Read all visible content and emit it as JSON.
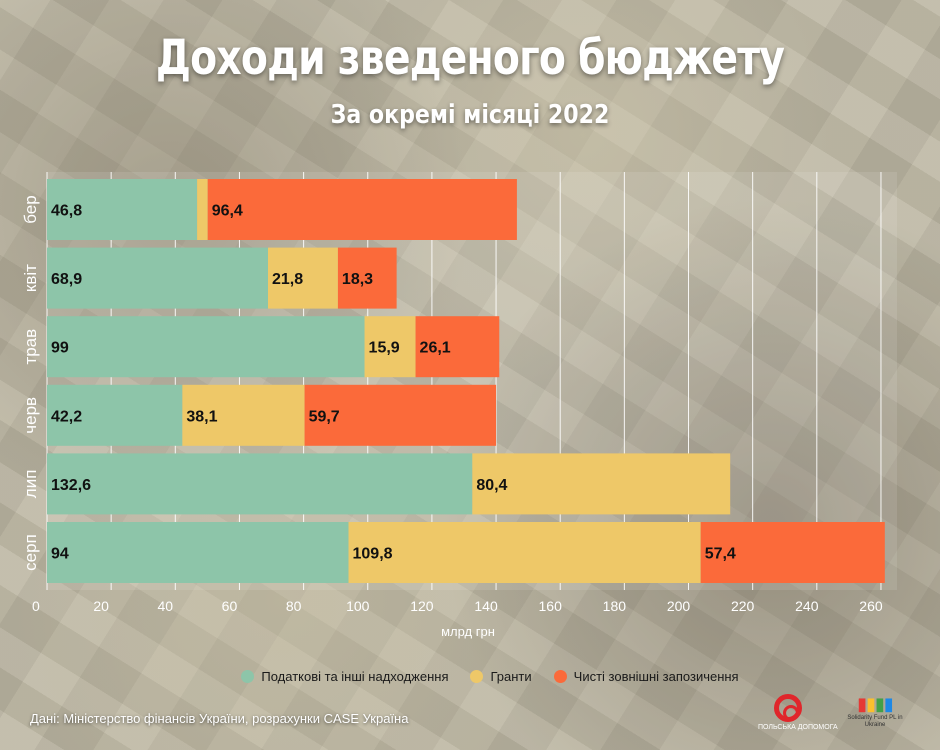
{
  "title": "Доходи зведеного бюджету",
  "subtitle": "За окремі місяці 2022",
  "chart_data": {
    "type": "bar",
    "orientation": "horizontal",
    "stacked": true,
    "categories": [
      "бер",
      "квіт",
      "трав",
      "черв",
      "лип",
      "серп"
    ],
    "series": [
      {
        "name": "Податкові та інші надходження",
        "color": "#8dc5a9",
        "values": [
          46.8,
          68.9,
          99,
          42.2,
          132.6,
          94
        ]
      },
      {
        "name": "Гранти",
        "color": "#eec868",
        "values": [
          3.3,
          21.8,
          15.9,
          38.1,
          80.4,
          109.8
        ]
      },
      {
        "name": "Чисті зовнішні запозичення",
        "color": "#fb6a3a",
        "values": [
          96.4,
          18.3,
          26.1,
          59.7,
          0,
          57.4
        ]
      }
    ],
    "value_labels": [
      [
        "46,8",
        "",
        "96,4"
      ],
      [
        "68,9",
        "21,8",
        "18,3"
      ],
      [
        "99",
        "15,9",
        "26,1"
      ],
      [
        "42,2",
        "38,1",
        "59,7"
      ],
      [
        "132,6",
        "80,4",
        ""
      ],
      [
        "94",
        "109,8",
        "57,4"
      ]
    ],
    "xlabel": "млрд грн",
    "xlim": [
      0,
      265
    ],
    "xticks": [
      "0",
      "20",
      "40",
      "60",
      "80",
      "100",
      "120",
      "140",
      "160",
      "180",
      "200",
      "220",
      "240",
      "260"
    ],
    "grid": true,
    "legend": "bottom"
  },
  "source": "Дані: Міністерство фінансів України, розрахунки CASE Україна",
  "logos": [
    {
      "name": "polska-pomoc-logo",
      "caption": "ПОЛЬСЬКА ДОПОМОГА"
    },
    {
      "name": "solidarity-fund-logo",
      "caption": "Solidarity Fund PL in Ukraine"
    }
  ]
}
